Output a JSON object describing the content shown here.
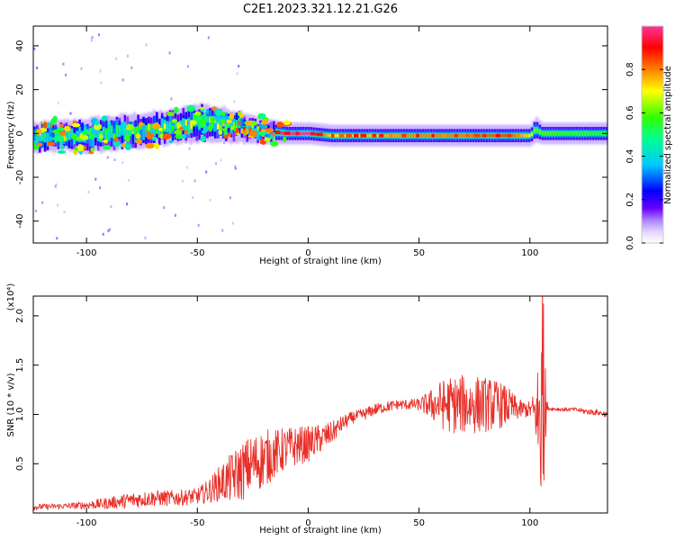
{
  "figure": {
    "title": "C2E1.2023.321.12.21.G26"
  },
  "colors": {
    "snr_line": "#e8302a",
    "colormap": [
      "#ffffff",
      "#e6d6ff",
      "#b28cff",
      "#6a00ff",
      "#0000ff",
      "#00c8ff",
      "#00ff90",
      "#32ff00",
      "#ffff00",
      "#ff8000",
      "#ff0000",
      "#ff3399"
    ]
  },
  "chart_data": [
    {
      "id": "spectrogram",
      "type": "heatmap",
      "xlabel": "Height of straight line (km)",
      "ylabel": "Frequency (Hz)",
      "xlim": [
        -124,
        135
      ],
      "ylim": [
        -50,
        49
      ],
      "xticks": [
        -100,
        -50,
        0,
        50,
        100
      ],
      "yticks": [
        -40,
        -20,
        0,
        20,
        40
      ],
      "colorbar": {
        "label": "Normalized spectral amplitude",
        "range": [
          0,
          1
        ],
        "ticks": [
          0.0,
          0.2,
          0.4,
          0.6,
          0.8
        ]
      },
      "signal_band": {
        "x": [
          -124,
          -110,
          -100,
          -90,
          -80,
          -70,
          -60,
          -50,
          -40,
          -30,
          -20,
          -10,
          0,
          10,
          30,
          50,
          70,
          90,
          100,
          102,
          105,
          120,
          135
        ],
        "center_hz": [
          -2,
          -1,
          -1,
          0,
          1,
          2,
          3,
          5,
          4,
          3,
          1,
          0,
          0,
          -1,
          -1,
          -1,
          -1,
          -1,
          -1,
          2,
          0,
          0,
          0
        ],
        "halfwidth_hz": [
          5,
          5,
          6,
          6,
          6,
          6,
          6,
          7,
          6,
          5,
          4,
          3,
          3,
          3,
          3,
          3,
          3,
          3,
          3,
          4,
          3,
          3,
          3
        ],
        "peak_amplitude": [
          0.35,
          0.4,
          0.45,
          0.5,
          0.55,
          0.6,
          0.6,
          0.6,
          0.65,
          0.8,
          0.9,
          1.0,
          1.0,
          0.7,
          0.75,
          0.8,
          0.8,
          0.85,
          0.7,
          0.6,
          0.6,
          0.55,
          0.55
        ]
      }
    },
    {
      "id": "snr",
      "type": "line",
      "xlabel": "Height of straight line (km)",
      "ylabel": "SNR (10 * v/v)",
      "y_multiplier": "(x10⁴)",
      "xlim": [
        -124,
        135
      ],
      "ylim": [
        0,
        2.2
      ],
      "xticks": [
        -100,
        -50,
        0,
        50,
        100
      ],
      "yticks": [
        0.5,
        1.0,
        1.5,
        2.0
      ],
      "trend": {
        "x": [
          -124,
          -110,
          -100,
          -90,
          -80,
          -70,
          -60,
          -50,
          -45,
          -40,
          -35,
          -30,
          -25,
          -20,
          -15,
          -10,
          -5,
          0,
          5,
          10,
          15,
          20,
          25,
          30,
          40,
          50,
          55,
          60,
          65,
          70,
          75,
          80,
          85,
          90,
          95,
          100,
          103,
          104,
          105,
          106,
          107,
          108,
          115,
          120,
          125,
          130,
          135
        ],
        "center": [
          0.06,
          0.07,
          0.08,
          0.1,
          0.13,
          0.15,
          0.15,
          0.17,
          0.22,
          0.3,
          0.35,
          0.42,
          0.5,
          0.55,
          0.6,
          0.65,
          0.68,
          0.7,
          0.75,
          0.8,
          0.9,
          0.97,
          1.0,
          1.05,
          1.1,
          1.1,
          1.1,
          1.1,
          1.1,
          1.1,
          1.1,
          1.1,
          1.1,
          1.08,
          1.05,
          1.05,
          1.0,
          0.9,
          1.0,
          1.0,
          1.1,
          1.06,
          1.05,
          1.05,
          1.03,
          1.02,
          1.0
        ],
        "spread": [
          0.03,
          0.03,
          0.04,
          0.06,
          0.08,
          0.08,
          0.08,
          0.08,
          0.12,
          0.18,
          0.25,
          0.3,
          0.3,
          0.3,
          0.25,
          0.22,
          0.2,
          0.18,
          0.15,
          0.12,
          0.08,
          0.06,
          0.06,
          0.06,
          0.05,
          0.06,
          0.15,
          0.25,
          0.3,
          0.3,
          0.3,
          0.28,
          0.25,
          0.2,
          0.1,
          0.08,
          0.3,
          0.9,
          1.1,
          0.9,
          0.4,
          0.02,
          0.02,
          0.02,
          0.03,
          0.03,
          0.03
        ]
      }
    }
  ]
}
